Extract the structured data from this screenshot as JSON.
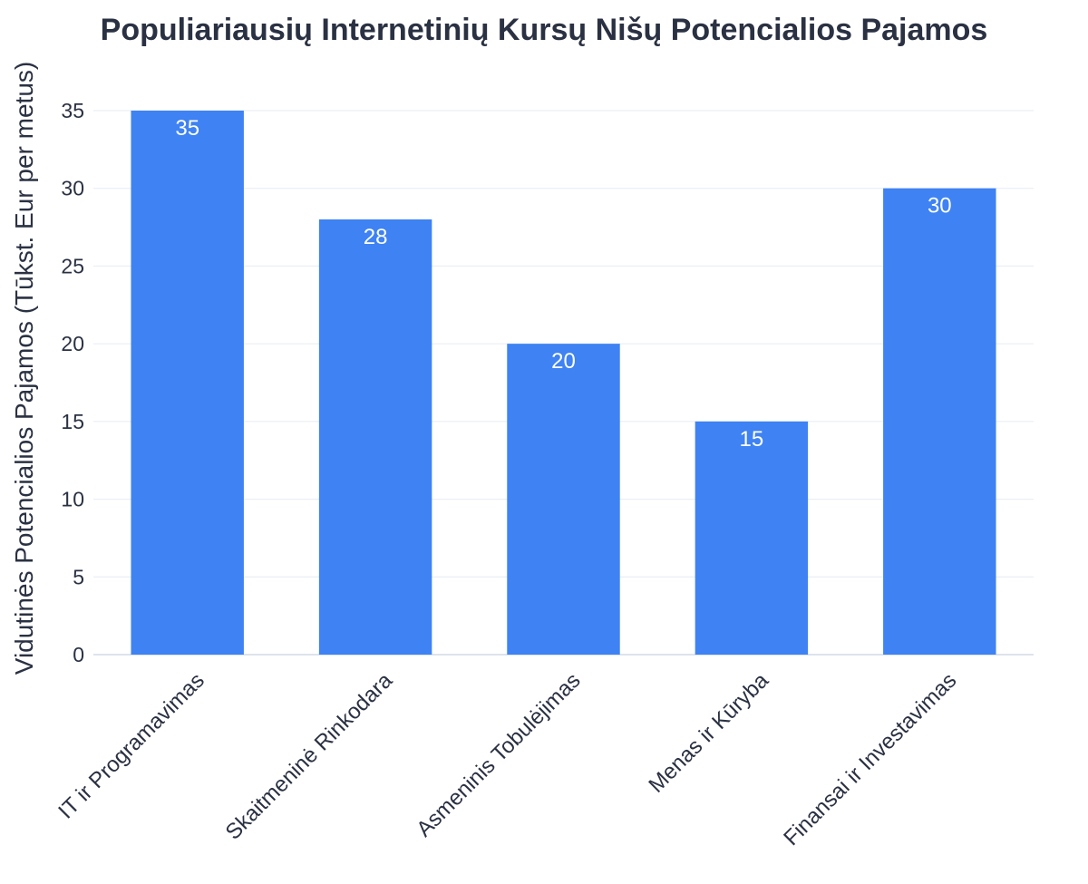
{
  "chart_data": {
    "type": "bar",
    "title": "Populiariausių Internetinių Kursų Nišų Potencialios Pajamos",
    "ylabel": "Vidutinės Potencialios Pajamos (Tūkst. Eur per metus)",
    "xlabel": "",
    "categories": [
      "IT ir Programavimas",
      "Skaitmeninė Rinkodara",
      "Asmeninis Tobulėjimas",
      "Menas ir Kūryba",
      "Finansai ir Investavimas"
    ],
    "values": [
      35,
      28,
      20,
      15,
      30
    ],
    "ylim": [
      0,
      35
    ],
    "yticks": [
      0,
      5,
      10,
      15,
      20,
      25,
      30,
      35
    ],
    "grid": true,
    "legend": "none",
    "bar_color": "#3e82f3",
    "data_label_color": "#ffffff"
  }
}
